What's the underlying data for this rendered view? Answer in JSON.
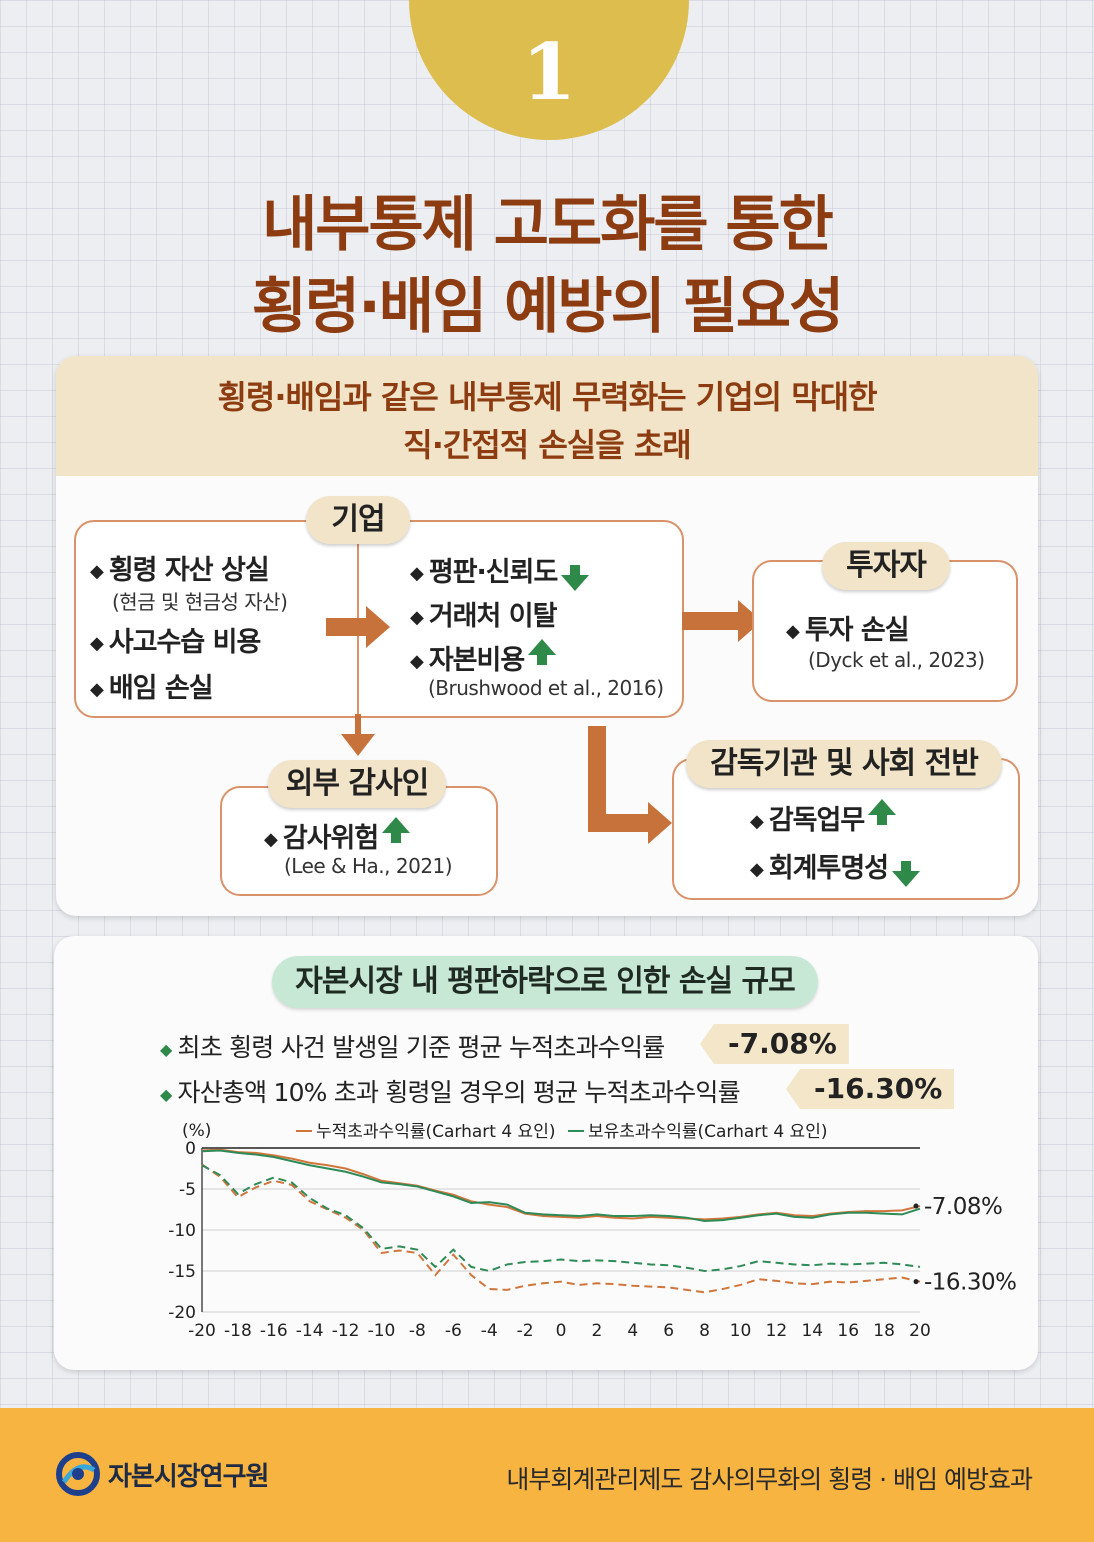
{
  "badge_number": "1",
  "title": {
    "line1": "내부통제 고도화를 통한",
    "line2": "횡령·배임 예방의 필요성"
  },
  "panel1": {
    "header_line1": "횡령·배임과 같은 내부통제 무력화는 기업의 막대한",
    "header_line2": "직·간접적 손실을 초래",
    "company": {
      "label": "기업",
      "left_items": [
        "횡령 자산 상실",
        "사고수습 비용",
        "배임 손실"
      ],
      "left_sub": "(현금 및 현금성 자산)",
      "right_items": [
        "평판·신뢰도",
        "거래처 이탈",
        "자본비용"
      ],
      "right_cite": "(Brushwood et al., 2016)"
    },
    "investor": {
      "label": "투자자",
      "item": "투자 손실",
      "cite": "(Dyck et al., 2023)"
    },
    "auditor": {
      "label": "외부 감사인",
      "item": "감사위험",
      "cite": "(Lee & Ha., 2021)"
    },
    "regulator": {
      "label": "감독기관 및 사회 전반",
      "items": [
        "감독업무",
        "회계투명성"
      ]
    }
  },
  "panel2": {
    "title": "자본시장 내 평판하락으로 인한 손실 규모",
    "stat1": {
      "text": "최초 횡령 사건 발생일 기준 평균 누적초과수익률",
      "value": "-7.08%"
    },
    "stat2": {
      "text": "자산총액 10% 초과 횡령일 경우의 평균 누적초과수익률",
      "value": "-16.30%"
    }
  },
  "chart_data": {
    "type": "line",
    "ylabel": "(%)",
    "ylim": [
      -20,
      0
    ],
    "yticks": [
      "0",
      "-5",
      "-10",
      "-15",
      "-20"
    ],
    "xticks": [
      "-20",
      "-18",
      "-16",
      "-14",
      "-12",
      "-10",
      "-8",
      "-6",
      "-4",
      "-2",
      "0",
      "2",
      "4",
      "6",
      "8",
      "10",
      "12",
      "14",
      "16",
      "18",
      "20"
    ],
    "legend": [
      "누적초과수익률(Carhart 4 요인)",
      "보유초과수익률(Carhart 4 요인)"
    ],
    "x": [
      -20,
      -19,
      -18,
      -17,
      -16,
      -15,
      -14,
      -13,
      -12,
      -11,
      -10,
      -9,
      -8,
      -7,
      -6,
      -5,
      -4,
      -3,
      -2,
      -1,
      0,
      1,
      2,
      3,
      4,
      5,
      6,
      7,
      8,
      9,
      10,
      11,
      12,
      13,
      14,
      15,
      16,
      17,
      18,
      19,
      20
    ],
    "series": [
      {
        "name": "누적초과수익률 (최초 횡령)",
        "color": "#d0763c",
        "dash": false,
        "values": [
          -0.3,
          -0.2,
          -0.5,
          -0.6,
          -0.9,
          -1.3,
          -1.8,
          -2.1,
          -2.5,
          -3.2,
          -4.0,
          -4.3,
          -4.6,
          -5.2,
          -5.7,
          -6.5,
          -6.9,
          -7.2,
          -8.0,
          -8.3,
          -8.4,
          -8.5,
          -8.3,
          -8.5,
          -8.6,
          -8.4,
          -8.5,
          -8.6,
          -8.7,
          -8.6,
          -8.4,
          -8.1,
          -7.9,
          -8.2,
          -8.3,
          -8.0,
          -7.8,
          -7.7,
          -7.7,
          -7.6,
          -7.08
        ]
      },
      {
        "name": "보유초과수익률 (최초 횡령)",
        "color": "#2e8b57",
        "dash": false,
        "values": [
          -0.4,
          -0.3,
          -0.6,
          -0.8,
          -1.1,
          -1.6,
          -2.1,
          -2.5,
          -2.9,
          -3.5,
          -4.2,
          -4.4,
          -4.7,
          -5.3,
          -5.9,
          -6.7,
          -6.6,
          -6.9,
          -7.9,
          -8.1,
          -8.2,
          -8.3,
          -8.1,
          -8.3,
          -8.3,
          -8.2,
          -8.3,
          -8.5,
          -8.9,
          -8.8,
          -8.5,
          -8.2,
          -8.0,
          -8.4,
          -8.5,
          -8.1,
          -7.9,
          -7.9,
          -8.0,
          -8.1,
          -7.4
        ]
      },
      {
        "name": "누적초과수익률 (10% 초과)",
        "color": "#d0763c",
        "dash": true,
        "values": [
          -2.0,
          -3.5,
          -6.0,
          -4.8,
          -4.0,
          -4.5,
          -6.5,
          -7.5,
          -8.5,
          -10.0,
          -12.8,
          -12.5,
          -12.8,
          -15.5,
          -13.0,
          -15.5,
          -17.2,
          -17.3,
          -16.8,
          -16.5,
          -16.3,
          -16.7,
          -16.5,
          -16.6,
          -16.8,
          -16.9,
          -17.0,
          -17.3,
          -17.6,
          -17.2,
          -16.7,
          -16.0,
          -16.2,
          -16.5,
          -16.6,
          -16.3,
          -16.4,
          -16.2,
          -16.0,
          -15.8,
          -16.3
        ]
      },
      {
        "name": "보유초과수익률 (10% 초과)",
        "color": "#2e8b57",
        "dash": true,
        "values": [
          -2.1,
          -3.3,
          -5.6,
          -4.4,
          -3.6,
          -4.2,
          -6.1,
          -7.4,
          -8.2,
          -9.8,
          -12.3,
          -12.0,
          -12.4,
          -14.5,
          -12.4,
          -14.5,
          -15.0,
          -14.2,
          -13.9,
          -13.8,
          -13.6,
          -13.8,
          -13.7,
          -13.8,
          -14.0,
          -14.2,
          -14.3,
          -14.6,
          -15.0,
          -14.8,
          -14.4,
          -13.8,
          -14.0,
          -14.2,
          -14.3,
          -14.1,
          -14.2,
          -14.1,
          -14.0,
          -14.2,
          -14.5
        ]
      }
    ],
    "annotations": [
      "-7.08%",
      "-16.30%"
    ]
  },
  "footer": {
    "org_name": "자본시장연구원",
    "report_title": "내부회계관리제도 감사의무화의 횡령 · 배임 예방효과"
  }
}
